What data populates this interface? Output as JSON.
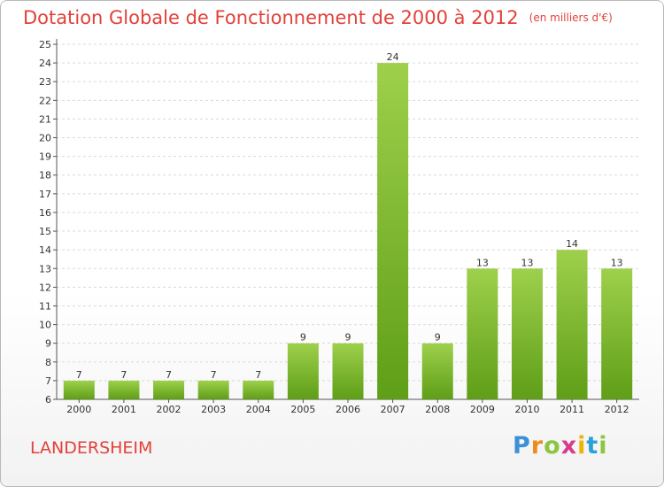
{
  "title": "Dotation Globale de Fonctionnement de 2000 à 2012",
  "unit": "(en milliers d'€)",
  "city": "LANDERSHEIM",
  "logo": "Proxiti",
  "colors": {
    "title": "#e2413a",
    "bar_light": "#9ed04c",
    "bar_dark": "#5f9e17",
    "grid": "#d9d9d9"
  },
  "chart_data": {
    "type": "bar",
    "title": "Dotation Globale de Fonctionnement de 2000 à 2012",
    "subtitle": "(en milliers d'€)",
    "xlabel": "",
    "ylabel": "",
    "categories": [
      "2000",
      "2001",
      "2002",
      "2003",
      "2004",
      "2005",
      "2006",
      "2007",
      "2008",
      "2009",
      "2010",
      "2011",
      "2012"
    ],
    "values": [
      7,
      7,
      7,
      7,
      7,
      9,
      9,
      24,
      9,
      13,
      13,
      14,
      13
    ],
    "ylim": [
      6,
      25
    ],
    "yticks": [
      6,
      7,
      8,
      9,
      10,
      11,
      12,
      13,
      14,
      15,
      16,
      17,
      18,
      19,
      20,
      21,
      22,
      23,
      24,
      25
    ],
    "grid": true,
    "data_labels": true,
    "legend": "none"
  }
}
